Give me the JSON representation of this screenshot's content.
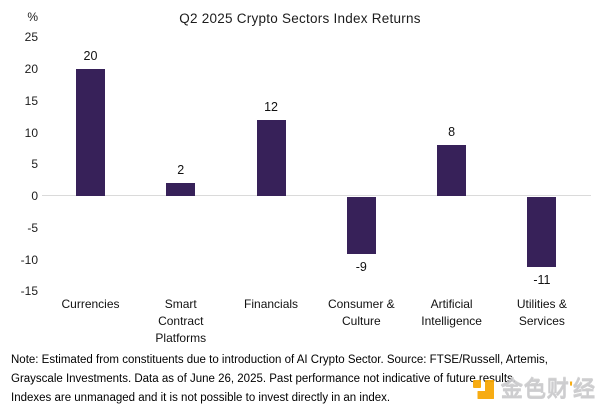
{
  "chart_data": {
    "type": "bar",
    "title": "Q2 2025 Crypto Sectors Index Returns",
    "unit_label": "%",
    "categories": [
      "Currencies",
      "Smart\nContract\nPlatforms",
      "Financials",
      "Consumer &\nCulture",
      "Artificial\nIntelligence",
      "Utilities &\nServices"
    ],
    "values": [
      20,
      2,
      12,
      -9,
      8,
      -11
    ],
    "value_labels": [
      "20",
      "2",
      "12",
      "-9",
      "8",
      "-11"
    ],
    "yticks": [
      25,
      20,
      15,
      10,
      5,
      0,
      -5,
      -10,
      -15
    ],
    "ylim": [
      -15,
      25
    ],
    "xlabel": "",
    "ylabel": "%",
    "grid": "zero-baseline-only",
    "legend": "none",
    "bar_color": "#372159",
    "zero_line_color": "#dadada"
  },
  "note": {
    "text": "Note: Estimated from constituents due to introduction of AI Crypto Sector. Source: FTSE/Russell, Artemis,\nGrayscale Investments. Data as of June 26, 2025. Past performance not indicative of future results.\nIndexes are unmanaged and it is not possible to invest directly in an index."
  },
  "watermark": {
    "part1": "金色财",
    "tick": "'",
    "part2": "经",
    "logo_color": "#f7a600",
    "text_color": "#c9c9cc"
  }
}
